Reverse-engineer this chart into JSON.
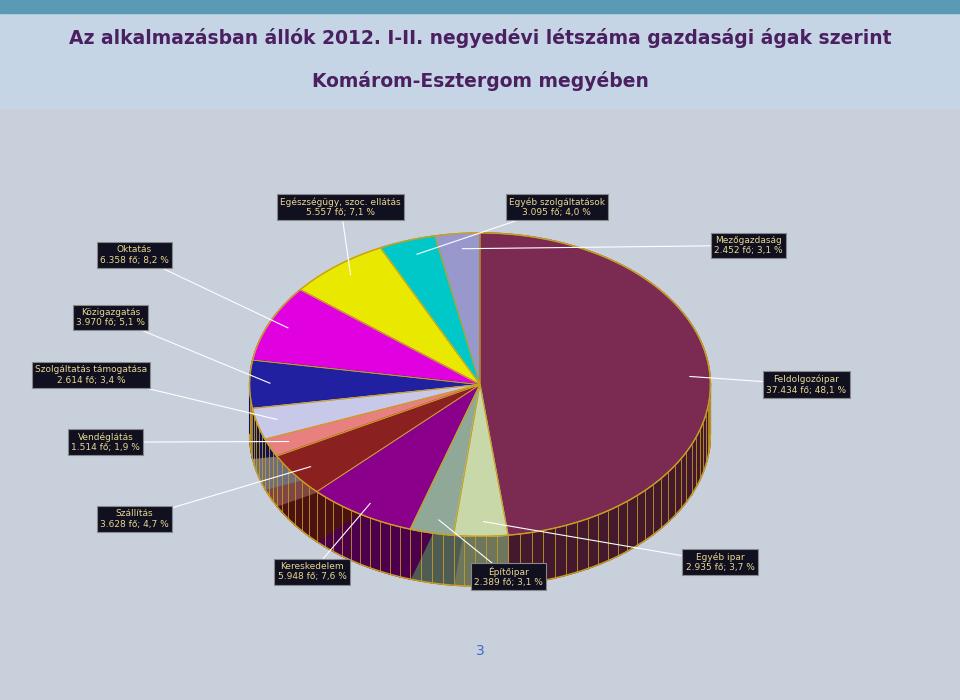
{
  "title_line1": "Az alkalmazásban állók 2012. I-II. negyedévi létszáma gazdasági ágak szerint",
  "title_line2": "Komárom-Esztergom megyében",
  "slices": [
    {
      "label": "Feldolgozóipar",
      "value": 37434,
      "pct": 48.1,
      "color": "#7B2B52"
    },
    {
      "label": "Egyéb ipar",
      "value": 2935,
      "pct": 3.7,
      "color": "#C8D8A8"
    },
    {
      "label": "Építőipar",
      "value": 2389,
      "pct": 3.1,
      "color": "#90A898"
    },
    {
      "label": "Kereskedelem",
      "value": 5948,
      "pct": 7.6,
      "color": "#8B008B"
    },
    {
      "label": "Szállítás",
      "value": 3628,
      "pct": 4.7,
      "color": "#8B2020"
    },
    {
      "label": "Vendéglátás",
      "value": 1514,
      "pct": 1.9,
      "color": "#E88080"
    },
    {
      "label": "Szolgáltatás támogatása",
      "value": 2614,
      "pct": 3.4,
      "color": "#C8C8E8"
    },
    {
      "label": "Közigazgatás",
      "value": 3970,
      "pct": 5.1,
      "color": "#2020A0"
    },
    {
      "label": "Oktatás",
      "value": 6358,
      "pct": 8.2,
      "color": "#E000E0"
    },
    {
      "label": "Egészségügy, szoc. ellátás",
      "value": 5557,
      "pct": 7.1,
      "color": "#E8E800"
    },
    {
      "label": "Egyéb szolgáltatások",
      "value": 3095,
      "pct": 4.0,
      "color": "#00C8C8"
    },
    {
      "label": "Mezőgazdaság",
      "value": 2452,
      "pct": 3.1,
      "color": "#9898CC"
    }
  ],
  "start_angle": 90,
  "background_color": "#C8D0DC",
  "chart_bg": "#1C1C2C",
  "title_color": "#4A2060",
  "label_color": "#E8D890",
  "label_bg": "#101020",
  "label_border": "#888888",
  "line_color": "#CCCCCC",
  "page_number": "3",
  "page_number_color": "#4466CC",
  "gold_edge": "#C8A020"
}
